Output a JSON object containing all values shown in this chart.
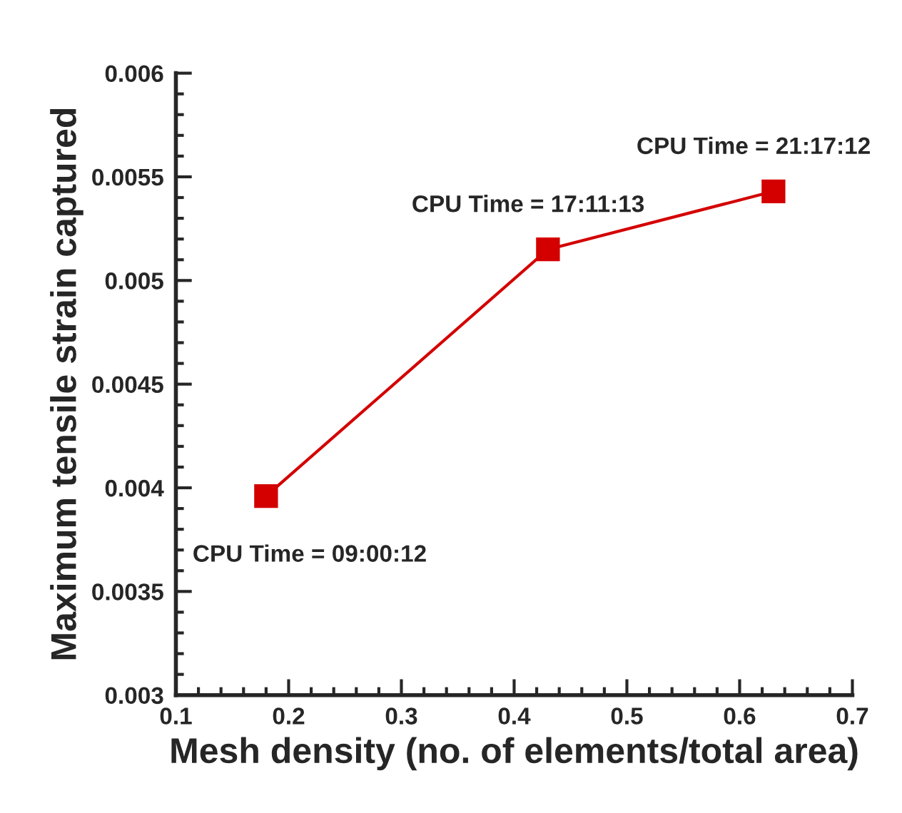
{
  "chart_data": {
    "type": "line",
    "xlabel": "Mesh density (no. of elements/total area)",
    "ylabel": "Maximum tensile strain captured",
    "x": [
      0.18,
      0.43,
      0.63
    ],
    "series": [
      {
        "color": "#d40000",
        "values": [
          0.00396,
          0.00515,
          0.00543
        ]
      }
    ],
    "marker": "square",
    "line_style": "solid",
    "xlim": [
      0.1,
      0.7
    ],
    "xticks": [
      0.1,
      0.2,
      0.3,
      0.4,
      0.5,
      0.6,
      0.7
    ],
    "ylim": [
      0.003,
      0.006
    ],
    "yticks": [
      0.003,
      0.0035,
      0.004,
      0.0045,
      0.005,
      0.0055,
      0.006
    ],
    "grid": false,
    "legend": false,
    "annotations": [
      {
        "text": "CPU Time = 09:00:12",
        "x": 0.18,
        "y": 0.00396
      },
      {
        "text": "CPU Time = 17:11:13",
        "x": 0.43,
        "y": 0.00515
      },
      {
        "text": "CPU Time = 21:17:12",
        "x": 0.63,
        "y": 0.00543
      }
    ]
  }
}
